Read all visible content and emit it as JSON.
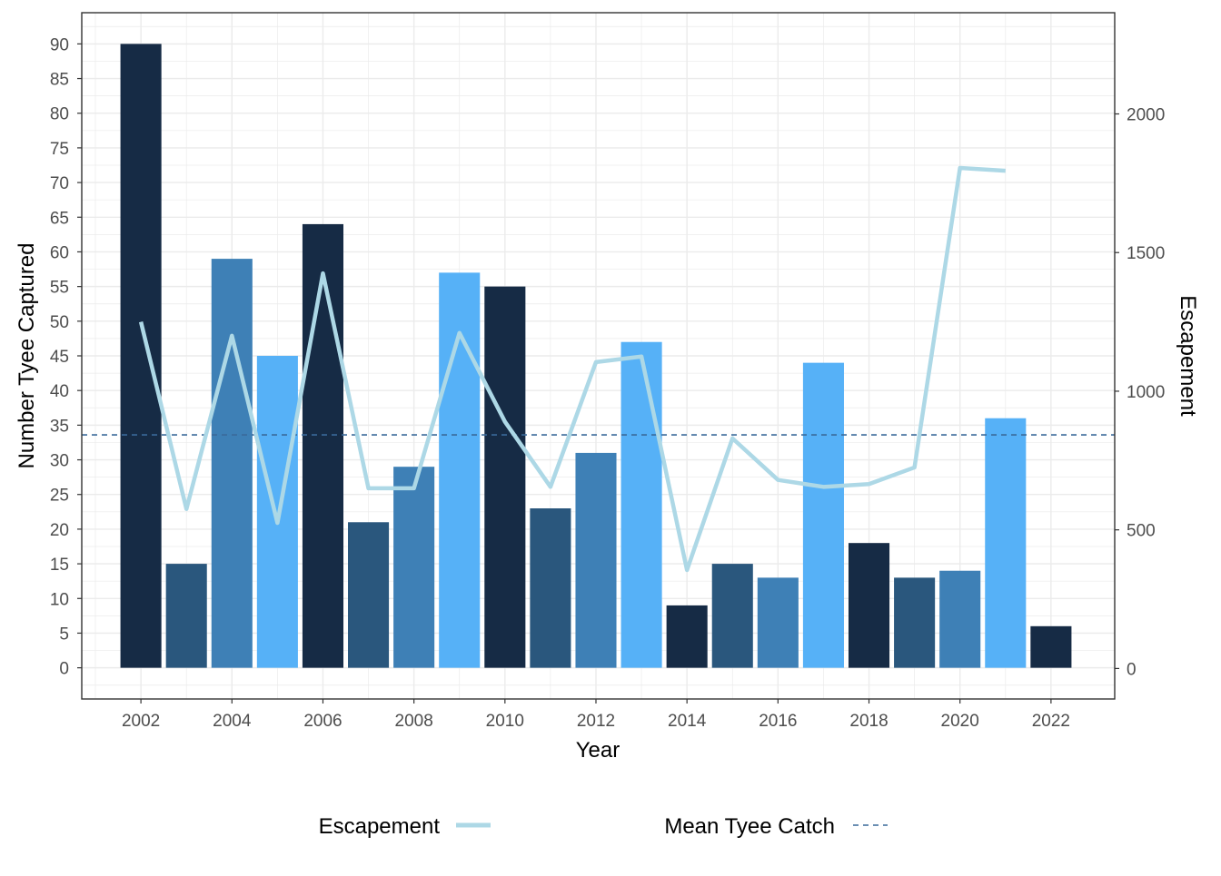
{
  "chart_data": {
    "type": "bar",
    "xlabel": "Year",
    "ylabel": "Number Tyee Captured",
    "y2label": "Escapement",
    "xlim": [
      2000.7,
      2023.4
    ],
    "ylim": [
      -4.5,
      94.5
    ],
    "y2lim": [
      -110,
      2365
    ],
    "x_ticks": [
      2002,
      2004,
      2006,
      2008,
      2010,
      2012,
      2014,
      2016,
      2018,
      2020,
      2022
    ],
    "y_ticks": [
      0,
      5,
      10,
      15,
      20,
      25,
      30,
      35,
      40,
      45,
      50,
      55,
      60,
      65,
      70,
      75,
      80,
      85,
      90
    ],
    "y2_ticks": [
      0,
      500,
      1000,
      1500,
      2000
    ],
    "grid": true,
    "legend_position": "bottom",
    "bar_palette": [
      "#162b45",
      "#2a577d",
      "#3e80b6",
      "#56b1f7"
    ],
    "bars": [
      {
        "year": 2002,
        "value": 90
      },
      {
        "year": 2003,
        "value": 15
      },
      {
        "year": 2004,
        "value": 59
      },
      {
        "year": 2005,
        "value": 45
      },
      {
        "year": 2006,
        "value": 64
      },
      {
        "year": 2007,
        "value": 21
      },
      {
        "year": 2008,
        "value": 29
      },
      {
        "year": 2009,
        "value": 57
      },
      {
        "year": 2010,
        "value": 55
      },
      {
        "year": 2011,
        "value": 23
      },
      {
        "year": 2012,
        "value": 31
      },
      {
        "year": 2013,
        "value": 47
      },
      {
        "year": 2014,
        "value": 9
      },
      {
        "year": 2015,
        "value": 15
      },
      {
        "year": 2016,
        "value": 13
      },
      {
        "year": 2017,
        "value": 44
      },
      {
        "year": 2018,
        "value": 18
      },
      {
        "year": 2019,
        "value": 13
      },
      {
        "year": 2020,
        "value": 14
      },
      {
        "year": 2021,
        "value": 36
      },
      {
        "year": 2022,
        "value": 6
      }
    ],
    "series": [
      {
        "name": "Escapement",
        "type": "line",
        "axis": "right",
        "color": "#add8e6",
        "x": [
          2002,
          2003,
          2004,
          2005,
          2006,
          2007,
          2008,
          2009,
          2010,
          2011,
          2012,
          2013,
          2014,
          2015,
          2016,
          2017,
          2018,
          2019,
          2020,
          2021
        ],
        "values": [
          1250,
          575,
          1200,
          525,
          1425,
          650,
          650,
          1210,
          890,
          655,
          1105,
          1125,
          355,
          830,
          680,
          655,
          665,
          725,
          1805,
          1795
        ]
      },
      {
        "name": "Mean Tyee Catch",
        "type": "hline",
        "axis": "left",
        "color": "#3a6a9a",
        "value": 33.6
      }
    ]
  }
}
